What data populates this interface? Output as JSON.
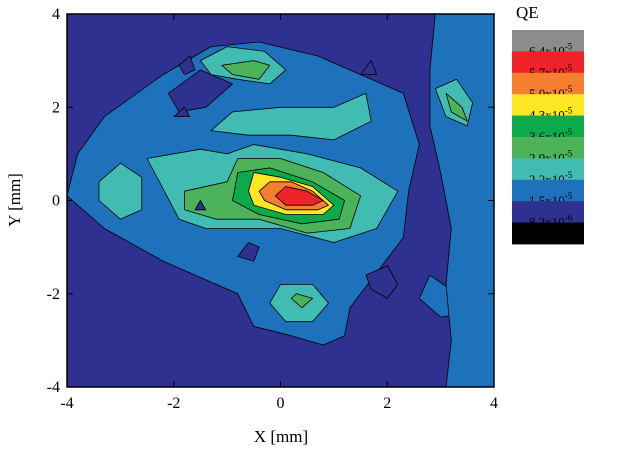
{
  "chart_data": {
    "type": "heatmap",
    "subtype": "filled-contour",
    "xlabel": "X [mm]",
    "ylabel": "Y [mm]",
    "xlim": [
      -4,
      4
    ],
    "ylim": [
      -4,
      4
    ],
    "xticks": [
      "-4",
      "-2",
      "0",
      "2",
      "4"
    ],
    "yticks": [
      "4",
      "2",
      "0",
      "-2",
      "-4"
    ],
    "grid": false,
    "legend": {
      "title": "QE",
      "placement": "right",
      "levels": [
        {
          "label": "6.4x10",
          "exp": "-5",
          "color": "#8c8c8c"
        },
        {
          "label": "5.7x10",
          "exp": "-5",
          "color": "#ee2229"
        },
        {
          "label": "5.0x10",
          "exp": "-5",
          "color": "#f47f2f"
        },
        {
          "label": "4.3x10",
          "exp": "-5",
          "color": "#fde725"
        },
        {
          "label": "3.6x10",
          "exp": "-5",
          "color": "#0caa4b"
        },
        {
          "label": "2.9x10",
          "exp": "-5",
          "color": "#4cb35a"
        },
        {
          "label": "2.2x10",
          "exp": "-5",
          "color": "#40bcb2"
        },
        {
          "label": "1.5x10",
          "exp": "-5",
          "color": "#1e72bb"
        },
        {
          "label": "8.2x10",
          "exp": "-6",
          "color": "#2e3190"
        },
        {
          "label": "",
          "exp": "",
          "color": "#000000"
        }
      ]
    },
    "regions": [
      {
        "level": "2.2x10^-5",
        "color": "#1e72bb",
        "points": [
          [
            -3.3,
            1.8
          ],
          [
            -2.2,
            2.7
          ],
          [
            -1.3,
            3.3
          ],
          [
            -0.4,
            3.4
          ],
          [
            0.7,
            3.1
          ],
          [
            1.5,
            2.7
          ],
          [
            2.3,
            2.3
          ],
          [
            2.6,
            1.2
          ],
          [
            2.4,
            0.2
          ],
          [
            2.3,
            -0.8
          ],
          [
            1.9,
            -1.4
          ],
          [
            1.3,
            -2.3
          ],
          [
            1.2,
            -2.9
          ],
          [
            0.8,
            -3.1
          ],
          [
            0.2,
            -2.9
          ],
          [
            -0.5,
            -2.7
          ],
          [
            -0.8,
            -2.0
          ],
          [
            -1.6,
            -1.6
          ],
          [
            -2.2,
            -1.3
          ],
          [
            -3.3,
            -0.6
          ],
          [
            -4.0,
            0.1
          ],
          [
            -3.8,
            1.0
          ]
        ]
      },
      {
        "level": "2.2x10^-5",
        "color": "#1e72bb",
        "points": [
          [
            2.8,
            -1.6
          ],
          [
            3.3,
            -2.0
          ],
          [
            3.6,
            -2.4
          ],
          [
            3.0,
            -2.5
          ],
          [
            2.6,
            -2.1
          ]
        ]
      },
      {
        "level": "2.2x10^-5",
        "color": "#1e72bb",
        "points": [
          [
            2.9,
            4.0
          ],
          [
            4.0,
            4.0
          ],
          [
            4.0,
            -4.0
          ],
          [
            3.1,
            -4.0
          ],
          [
            3.2,
            -3.0
          ],
          [
            3.1,
            -1.8
          ],
          [
            3.2,
            -0.6
          ],
          [
            3.0,
            0.6
          ],
          [
            2.8,
            1.6
          ],
          [
            2.8,
            2.8
          ]
        ]
      },
      {
        "level": "2.9x10^-5",
        "color": "#40bcb2",
        "points": [
          [
            -2.5,
            0.9
          ],
          [
            -1.5,
            1.1
          ],
          [
            -1.0,
            1.0
          ],
          [
            -0.5,
            1.2
          ],
          [
            0.5,
            1.0
          ],
          [
            1.5,
            0.7
          ],
          [
            2.2,
            0.2
          ],
          [
            1.8,
            -0.6
          ],
          [
            1.0,
            -0.9
          ],
          [
            0.0,
            -0.6
          ],
          [
            -0.8,
            -0.6
          ],
          [
            -1.4,
            -0.6
          ],
          [
            -1.9,
            -0.4
          ]
        ]
      },
      {
        "level": "2.9x10^-5",
        "color": "#40bcb2",
        "points": [
          [
            -3.4,
            0.4
          ],
          [
            -3.0,
            0.8
          ],
          [
            -2.6,
            0.5
          ],
          [
            -2.6,
            -0.2
          ],
          [
            -3.0,
            -0.4
          ],
          [
            -3.4,
            0.0
          ]
        ]
      },
      {
        "level": "2.9x10^-5",
        "color": "#40bcb2",
        "points": [
          [
            -1.5,
            3.0
          ],
          [
            -1.0,
            3.3
          ],
          [
            -0.3,
            3.2
          ],
          [
            0.1,
            2.8
          ],
          [
            -0.2,
            2.5
          ],
          [
            -0.8,
            2.6
          ],
          [
            -1.3,
            2.7
          ]
        ]
      },
      {
        "level": "2.9x10^-5",
        "color": "#40bcb2",
        "points": [
          [
            -1.3,
            1.5
          ],
          [
            -0.9,
            1.9
          ],
          [
            0.0,
            2.0
          ],
          [
            1.0,
            2.0
          ],
          [
            1.6,
            2.3
          ],
          [
            1.7,
            1.7
          ],
          [
            1.0,
            1.3
          ],
          [
            0.2,
            1.4
          ],
          [
            -0.6,
            1.4
          ]
        ]
      },
      {
        "level": "2.9x10^-5",
        "color": "#40bcb2",
        "points": [
          [
            0.0,
            -1.8
          ],
          [
            0.6,
            -1.8
          ],
          [
            0.9,
            -2.2
          ],
          [
            0.6,
            -2.6
          ],
          [
            0.1,
            -2.6
          ],
          [
            -0.2,
            -2.2
          ]
        ]
      },
      {
        "level": "2.9x10^-5",
        "color": "#40bcb2",
        "points": [
          [
            2.9,
            2.4
          ],
          [
            3.3,
            2.6
          ],
          [
            3.6,
            2.1
          ],
          [
            3.5,
            1.6
          ],
          [
            3.1,
            1.8
          ]
        ]
      },
      {
        "level": "3.6x10^-5",
        "color": "#4cb35a",
        "points": [
          [
            -1.8,
            0.2
          ],
          [
            -1.0,
            0.4
          ],
          [
            -0.8,
            0.9
          ],
          [
            0.0,
            0.9
          ],
          [
            0.8,
            0.6
          ],
          [
            1.5,
            0.1
          ],
          [
            1.3,
            -0.6
          ],
          [
            0.5,
            -0.7
          ],
          [
            -0.4,
            -0.4
          ],
          [
            -1.2,
            -0.4
          ],
          [
            -1.8,
            -0.2
          ]
        ]
      },
      {
        "level": "3.6x10^-5",
        "color": "#4cb35a",
        "points": [
          [
            -1.1,
            2.9
          ],
          [
            -0.5,
            3.0
          ],
          [
            -0.2,
            2.9
          ],
          [
            -0.4,
            2.6
          ],
          [
            -0.9,
            2.7
          ]
        ]
      },
      {
        "level": "3.6x10^-5",
        "color": "#4cb35a",
        "points": [
          [
            0.3,
            -2.0
          ],
          [
            0.6,
            -2.1
          ],
          [
            0.4,
            -2.3
          ],
          [
            0.2,
            -2.1
          ]
        ]
      },
      {
        "level": "3.6x10^-5",
        "color": "#4cb35a",
        "points": [
          [
            3.1,
            2.3
          ],
          [
            3.4,
            2.0
          ],
          [
            3.5,
            1.7
          ],
          [
            3.2,
            1.9
          ]
        ]
      },
      {
        "level": "4.3x10^-5",
        "color": "#0caa4b",
        "points": [
          [
            -0.9,
            0.0
          ],
          [
            -0.8,
            0.6
          ],
          [
            -0.2,
            0.7
          ],
          [
            0.6,
            0.4
          ],
          [
            1.2,
            0.0
          ],
          [
            1.1,
            -0.4
          ],
          [
            0.4,
            -0.5
          ],
          [
            -0.4,
            -0.3
          ]
        ]
      },
      {
        "level": "5.0x10^-5",
        "color": "#fde725",
        "points": [
          [
            -0.6,
            0.2
          ],
          [
            -0.5,
            0.6
          ],
          [
            0.0,
            0.5
          ],
          [
            0.6,
            0.3
          ],
          [
            1.0,
            -0.1
          ],
          [
            0.8,
            -0.3
          ],
          [
            0.1,
            -0.3
          ],
          [
            -0.5,
            -0.1
          ]
        ]
      },
      {
        "level": "5.7x10^-5",
        "color": "#f47f2f",
        "points": [
          [
            -0.4,
            0.2
          ],
          [
            -0.2,
            0.4
          ],
          [
            0.2,
            0.4
          ],
          [
            0.6,
            0.2
          ],
          [
            0.9,
            -0.1
          ],
          [
            0.7,
            -0.2
          ],
          [
            0.1,
            -0.2
          ],
          [
            -0.3,
            0.0
          ]
        ]
      },
      {
        "level": "6.4x10^-5",
        "color": "#ee2229",
        "points": [
          [
            -0.1,
            0.1
          ],
          [
            0.1,
            0.3
          ],
          [
            0.5,
            0.2
          ],
          [
            0.8,
            0.0
          ],
          [
            0.6,
            -0.1
          ],
          [
            0.1,
            -0.1
          ]
        ]
      }
    ],
    "holes": [
      {
        "color": "#2e3190",
        "points": [
          [
            -1.9,
            2.9
          ],
          [
            -1.7,
            3.1
          ],
          [
            -1.6,
            2.8
          ],
          [
            -1.8,
            2.7
          ]
        ]
      },
      {
        "color": "#2e3190",
        "points": [
          [
            -2.1,
            2.3
          ],
          [
            -1.5,
            2.8
          ],
          [
            -0.9,
            2.5
          ],
          [
            -1.4,
            2.0
          ],
          [
            -1.9,
            1.9
          ]
        ]
      },
      {
        "color": "#2e3190",
        "points": [
          [
            -2.0,
            1.8
          ],
          [
            -1.8,
            2.0
          ],
          [
            -1.7,
            1.8
          ]
        ]
      },
      {
        "color": "#2e3190",
        "points": [
          [
            -1.6,
            -0.2
          ],
          [
            -1.5,
            0.0
          ],
          [
            -1.4,
            -0.2
          ]
        ]
      },
      {
        "color": "#2e3190",
        "points": [
          [
            -0.6,
            -0.9
          ],
          [
            -0.4,
            -1.0
          ],
          [
            -0.5,
            -1.3
          ],
          [
            -0.8,
            -1.2
          ]
        ]
      },
      {
        "color": "#2e3190",
        "points": [
          [
            1.6,
            -1.6
          ],
          [
            2.0,
            -1.4
          ],
          [
            2.2,
            -1.8
          ],
          [
            2.0,
            -2.1
          ],
          [
            1.7,
            -1.9
          ]
        ]
      },
      {
        "color": "#2e3190",
        "points": [
          [
            1.5,
            2.7
          ],
          [
            1.7,
            3.0
          ],
          [
            1.8,
            2.7
          ]
        ]
      }
    ]
  }
}
